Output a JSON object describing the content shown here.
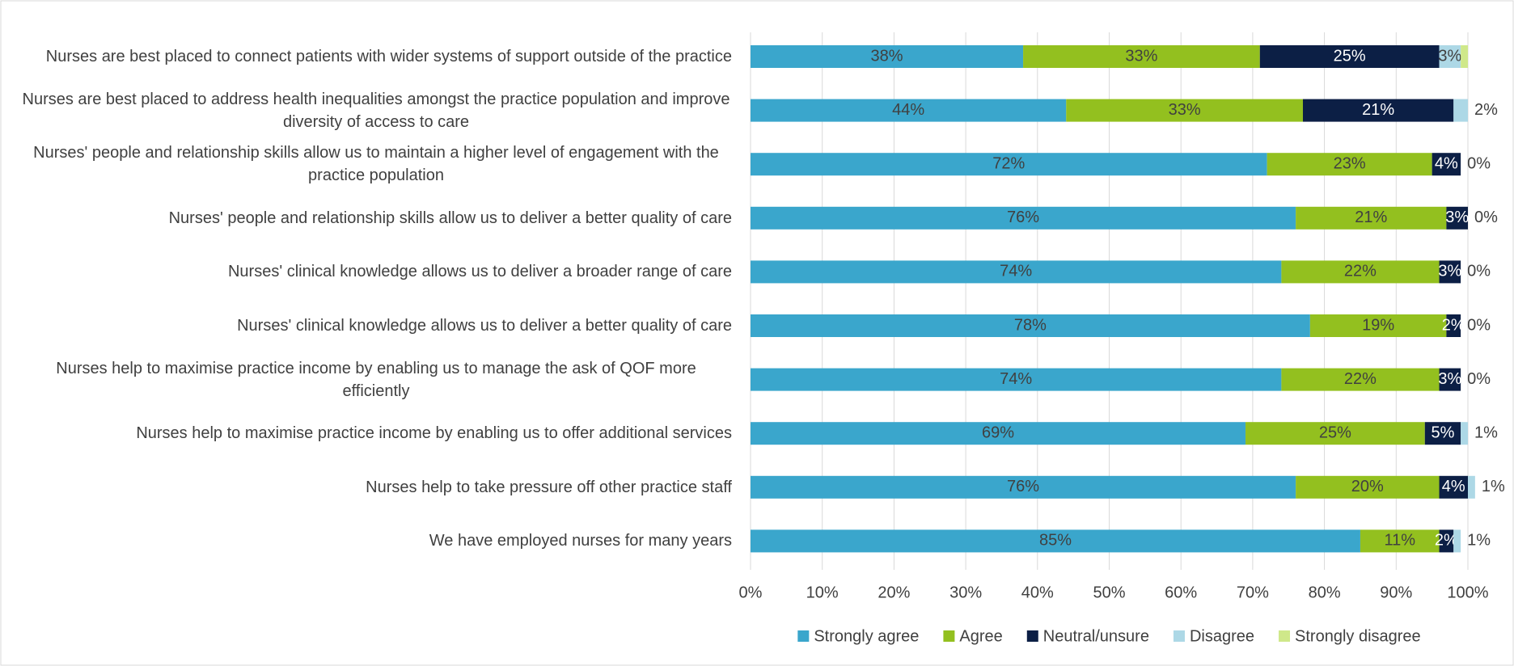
{
  "chart_data": {
    "type": "stacked_barh",
    "categories": [
      "Nurses are best placed to connect patients with wider systems of support outside of the practice",
      "Nurses are best placed to address health inequalities amongst the practice population and improve diversity of access to care",
      "Nurses' people and relationship skills allow us to maintain a higher level of engagement with the practice population",
      "Nurses' people and relationship skills allow us to deliver a better quality of care",
      "Nurses' clinical knowledge allows us to deliver a broader range of care",
      "Nurses' clinical knowledge allows us to deliver a better quality of care",
      "Nurses help to maximise practice income by enabling us to manage the ask of QOF more efficiently",
      "Nurses help to maximise practice income by enabling us to offer additional services",
      "Nurses help to take pressure off other practice staff",
      "We have employed nurses for many years"
    ],
    "series": [
      {
        "name": "Strongly agree",
        "color": "#3aa6cc",
        "values": [
          38,
          44,
          72,
          76,
          74,
          78,
          74,
          69,
          76,
          85
        ],
        "value_labels": [
          "38%",
          "44%",
          "72%",
          "76%",
          "74%",
          "78%",
          "74%",
          "69%",
          "76%",
          "85%"
        ]
      },
      {
        "name": "Agree",
        "color": "#93c01f",
        "values": [
          33,
          33,
          23,
          21,
          22,
          19,
          22,
          25,
          20,
          11
        ],
        "value_labels": [
          "33%",
          "33%",
          "23%",
          "21%",
          "22%",
          "19%",
          "22%",
          "25%",
          "20%",
          "11%"
        ]
      },
      {
        "name": "Neutral/unsure",
        "color": "#0c1f45",
        "values": [
          25,
          21,
          4,
          3,
          3,
          2,
          3,
          5,
          4,
          2
        ],
        "value_labels": [
          "25%",
          "21%",
          "4%",
          "3%",
          "3%",
          "2%",
          "3%",
          "5%",
          "4%",
          "2%"
        ]
      },
      {
        "name": "Disagree",
        "color": "#add8e6",
        "values": [
          3,
          2,
          0,
          0,
          0,
          0,
          0,
          1,
          1,
          1
        ],
        "value_labels": [
          "3%",
          "2%",
          "0%",
          "0%",
          "0%",
          "0%",
          "0%",
          "1%",
          "1%",
          "1%"
        ]
      },
      {
        "name": "Strongly disagree",
        "color": "#cfe88a",
        "values": [
          1,
          0,
          0,
          0,
          0,
          0,
          0,
          0,
          0,
          0
        ]
      }
    ],
    "xlim": [
      0,
      100
    ],
    "xticks": [
      {
        "value": 0,
        "label": "0%"
      },
      {
        "value": 10,
        "label": "10%"
      },
      {
        "value": 20,
        "label": "20%"
      },
      {
        "value": 30,
        "label": "30%"
      },
      {
        "value": 40,
        "label": "40%"
      },
      {
        "value": 50,
        "label": "50%"
      },
      {
        "value": 60,
        "label": "60%"
      },
      {
        "value": 70,
        "label": "70%"
      },
      {
        "value": 80,
        "label": "80%"
      },
      {
        "value": 90,
        "label": "90%"
      },
      {
        "value": 100,
        "label": "100%"
      }
    ],
    "grid": true,
    "legend": "bottom"
  }
}
